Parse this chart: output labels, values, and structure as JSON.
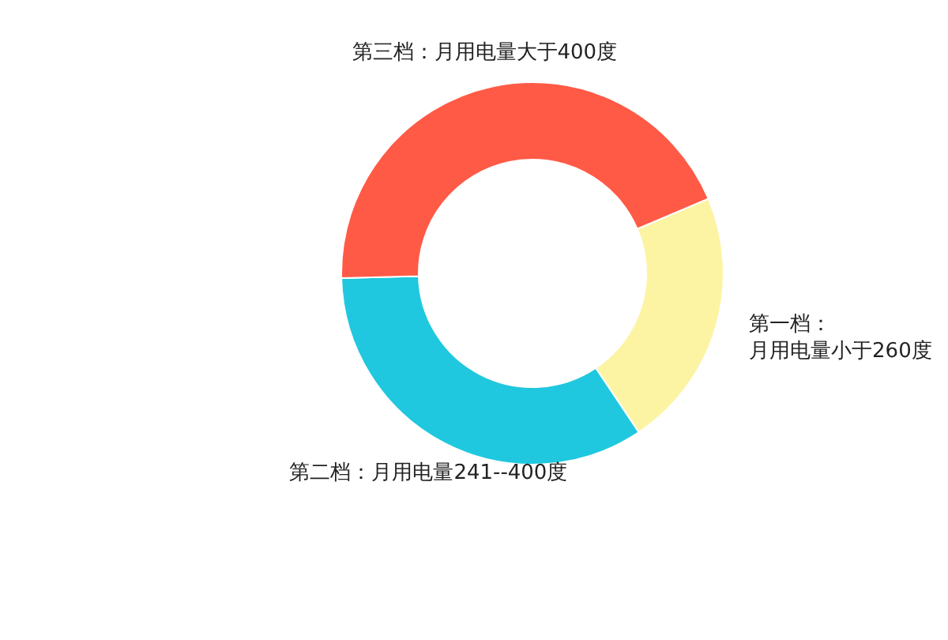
{
  "chart_data": {
    "type": "donut",
    "categories": [
      "第一档：月用电量小于260度",
      "第二档：月用电量241--400度",
      "第三档：月用电量大于400度"
    ],
    "values": [
      22,
      34,
      44
    ],
    "colors": [
      "#fcf4a3",
      "#1fc8de",
      "#ff5a46"
    ]
  }
}
